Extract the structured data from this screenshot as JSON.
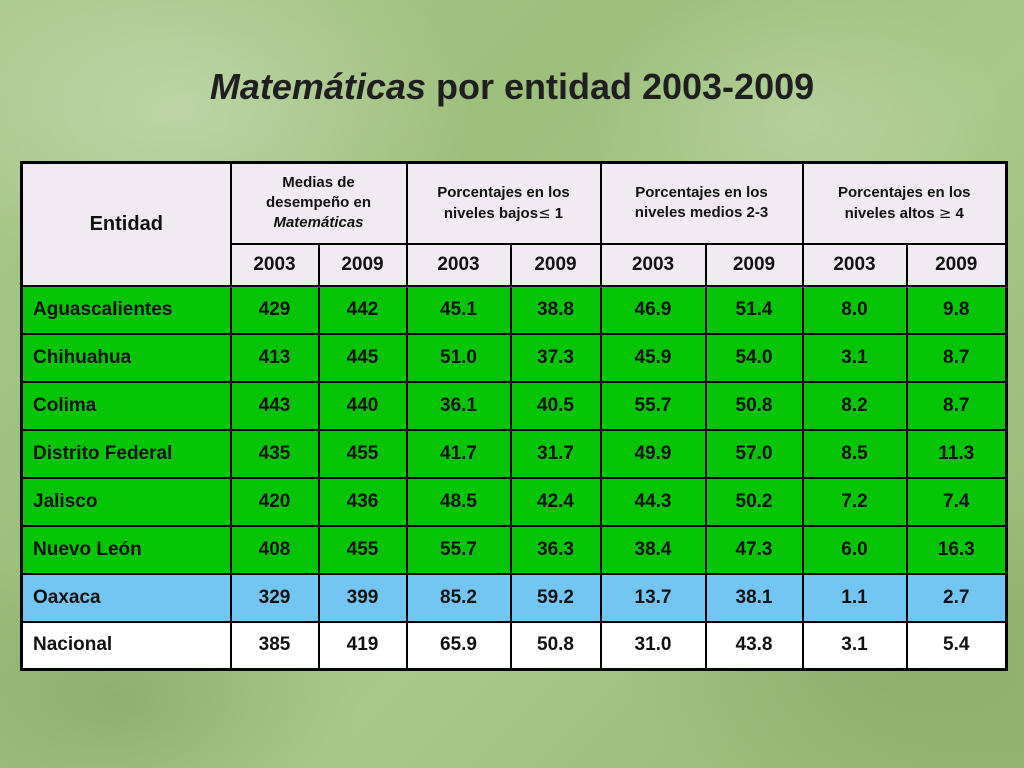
{
  "title": {
    "italic": "Matemáticas",
    "rest": " por entidad 2003-2009"
  },
  "table": {
    "headers": {
      "entidad": "Entidad",
      "medias": {
        "line1": "Medias de",
        "line2": "desempeño en",
        "line3": "Matemáticas"
      },
      "bajos": {
        "line1": "Porcentajes en los",
        "line2_text": "niveles bajos",
        "line2_symbol": "≤",
        "line2_value": " 1"
      },
      "medios": {
        "line1": "Porcentajes en los",
        "line2": "niveles medios 2-3"
      },
      "altos": {
        "line1": "Porcentajes en los",
        "line2_text": "niveles altos ",
        "line2_symbol": "≥",
        "line2_value": " 4"
      },
      "years": [
        "2003",
        "2009",
        "2003",
        "2009",
        "2003",
        "2009",
        "2003",
        "2009"
      ]
    },
    "rows": [
      {
        "entidad": "Aguascalientes",
        "values": [
          "429",
          "442",
          "45.1",
          "38.8",
          "46.9",
          "51.4",
          "8.0",
          "9.8"
        ],
        "highlight": "green"
      },
      {
        "entidad": "Chihuahua",
        "values": [
          "413",
          "445",
          "51.0",
          "37.3",
          "45.9",
          "54.0",
          "3.1",
          "8.7"
        ],
        "highlight": "green"
      },
      {
        "entidad": "Colima",
        "values": [
          "443",
          "440",
          "36.1",
          "40.5",
          "55.7",
          "50.8",
          "8.2",
          "8.7"
        ],
        "highlight": "green"
      },
      {
        "entidad": "Distrito Federal",
        "values": [
          "435",
          "455",
          "41.7",
          "31.7",
          "49.9",
          "57.0",
          "8.5",
          "11.3"
        ],
        "highlight": "green"
      },
      {
        "entidad": "Jalisco",
        "values": [
          "420",
          "436",
          "48.5",
          "42.4",
          "44.3",
          "50.2",
          "7.2",
          "7.4"
        ],
        "highlight": "green"
      },
      {
        "entidad": "Nuevo León",
        "values": [
          "408",
          "455",
          "55.7",
          "36.3",
          "38.4",
          "47.3",
          "6.0",
          "16.3"
        ],
        "highlight": "green"
      },
      {
        "entidad": "Oaxaca",
        "values": [
          "329",
          "399",
          "85.2",
          "59.2",
          "13.7",
          "38.1",
          "1.1",
          "2.7"
        ],
        "highlight": "blue"
      },
      {
        "entidad": "Nacional",
        "values": [
          "385",
          "419",
          "65.9",
          "50.8",
          "31.0",
          "43.8",
          "3.1",
          "5.4"
        ],
        "highlight": "white"
      }
    ]
  },
  "colors": {
    "green": "#06c406",
    "blue": "#73c6f2",
    "header": "#f2eaf2",
    "white": "#ffffff"
  }
}
